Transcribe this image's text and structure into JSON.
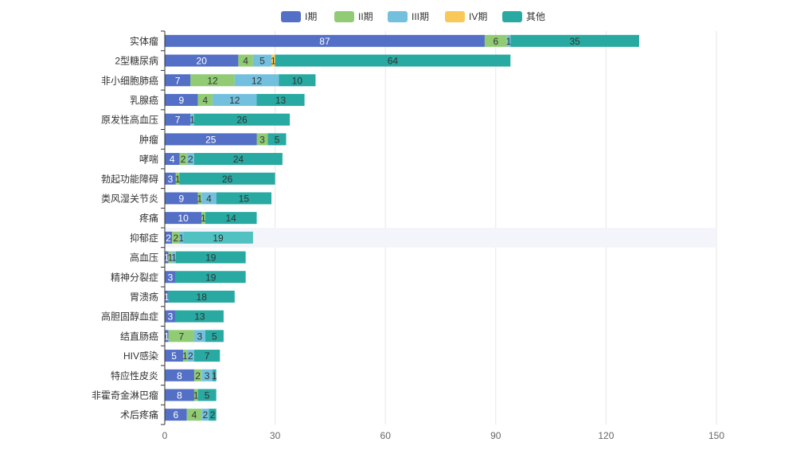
{
  "colors": {
    "series": [
      "#5470c6",
      "#91cc75",
      "#73c0de",
      "#fac858",
      "#28a9a1"
    ],
    "axis_line": "#333333",
    "grid_line": "#e6e6e6",
    "highlight_band": "#f3f5fb",
    "highlight_bar": "#52c1c1",
    "label_light": "#ffffff",
    "label_dark": "#333333"
  },
  "chart_data": {
    "type": "bar",
    "orientation": "horizontal",
    "stacked": true,
    "title": "",
    "xlabel": "",
    "ylabel": "",
    "xlim": [
      0,
      150
    ],
    "xticks": [
      "0",
      "30",
      "60",
      "90",
      "120",
      "150"
    ],
    "grid": true,
    "legend_position": "top",
    "highlighted_category": "抑郁症",
    "categories": [
      "实体瘤",
      "2型糖尿病",
      "非小细胞肺癌",
      "乳腺癌",
      "原发性高血压",
      "肿瘤",
      "哮喘",
      "勃起功能障碍",
      "类风湿关节炎",
      "疼痛",
      "抑郁症",
      "高血压",
      "精神分裂症",
      "胃溃疡",
      "高胆固醇血症",
      "结直肠癌",
      "HIV感染",
      "特应性皮炎",
      "非霍奇金淋巴瘤",
      "术后疼痛"
    ],
    "series": [
      {
        "name": "I期",
        "values": [
          87,
          20,
          7,
          9,
          7,
          25,
          4,
          3,
          9,
          10,
          2,
          1,
          3,
          1,
          3,
          1,
          5,
          8,
          8,
          6
        ]
      },
      {
        "name": "II期",
        "values": [
          6,
          4,
          12,
          4,
          0,
          3,
          2,
          1,
          1,
          1,
          2,
          1,
          0,
          0,
          0,
          7,
          1,
          2,
          1,
          4
        ]
      },
      {
        "name": "III期",
        "values": [
          1,
          5,
          12,
          12,
          1,
          0,
          2,
          0,
          4,
          0,
          1,
          1,
          0,
          0,
          0,
          3,
          2,
          3,
          0,
          2
        ]
      },
      {
        "name": "IV期",
        "values": [
          0,
          1,
          0,
          0,
          0,
          0,
          0,
          0,
          0,
          0,
          0,
          0,
          0,
          0,
          0,
          0,
          0,
          0,
          0,
          0
        ]
      },
      {
        "name": "其他",
        "values": [
          35,
          64,
          10,
          13,
          26,
          5,
          24,
          26,
          15,
          14,
          19,
          19,
          19,
          18,
          13,
          5,
          7,
          1,
          5,
          2
        ]
      }
    ]
  }
}
